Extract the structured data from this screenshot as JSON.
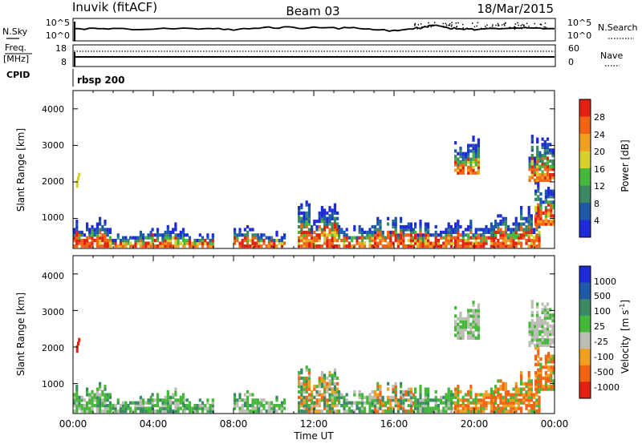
{
  "header": {
    "station": "Inuvik (fitACF)",
    "beam": "Beam 03",
    "date": "18/Mar/2015"
  },
  "nsky_panel": {
    "left_label": "N.Sky",
    "left_ticks": [
      "10^5",
      "10^0"
    ],
    "right_ticks": [
      "10^5",
      "10^0"
    ],
    "right_label": "N.Search",
    "right_line_style": "dotted"
  },
  "freq_panel": {
    "left_label_top": "Freq.",
    "left_label_bottom": "[MHz]",
    "left_ticks": [
      "18",
      "8"
    ],
    "right_ticks": [
      "60",
      "0"
    ],
    "right_label": "Nave",
    "right_line_style": "dotted"
  },
  "cpid_panel": {
    "label": "CPID",
    "program": "rbsp 200"
  },
  "power_panel": {
    "ylabel": "Slant Range [km]",
    "yticks": [
      "1000",
      "2000",
      "3000",
      "4000"
    ],
    "colorbar_label": "Power [dB]",
    "colorbar_ticks": [
      "4",
      "8",
      "12",
      "16",
      "20",
      "24",
      "28"
    ]
  },
  "velocity_panel": {
    "ylabel": "Slant Range [km]",
    "yticks": [
      "1000",
      "2000",
      "3000",
      "4000"
    ],
    "colorbar_label": "Velocity",
    "colorbar_unit_a": "[m s",
    "colorbar_unit_sup": "-1",
    "colorbar_unit_b": "]",
    "colorbar_ticks": [
      "1000",
      "500",
      "100",
      "25",
      "-25",
      "-100",
      "-500",
      "-1000"
    ]
  },
  "xaxis": {
    "ticks": [
      "00:00",
      "04:00",
      "08:00",
      "12:00",
      "16:00",
      "20:00",
      "00:00"
    ],
    "label": "Time UT"
  },
  "chart_data": {
    "type": "heatmap",
    "time_range_hours": [
      0,
      24
    ],
    "range_km": [
      180,
      4500
    ],
    "power_colors": [
      "#1e2bd6",
      "#1d5aa8",
      "#3a8a64",
      "#45b83b",
      "#d6cf30",
      "#f0a020",
      "#f06414",
      "#e02010"
    ],
    "velocity_colors": [
      "#1e2bd6",
      "#1d5aa8",
      "#3a8a64",
      "#45b83b",
      "#bdbdb5",
      "#f0a020",
      "#f06414",
      "#e02010"
    ],
    "nsky_trend": [
      [
        0.1,
        0.45
      ],
      [
        2,
        0.47
      ],
      [
        6,
        0.45
      ],
      [
        8,
        0.5
      ],
      [
        10,
        0.4
      ],
      [
        12,
        0.42
      ],
      [
        14,
        0.44
      ],
      [
        16,
        0.55
      ],
      [
        17.5,
        0.4
      ],
      [
        18,
        0.3
      ],
      [
        19,
        0.45
      ],
      [
        20,
        0.48
      ],
      [
        22,
        0.45
      ],
      [
        24,
        0.42
      ]
    ],
    "echo_regions": [
      {
        "t0": 0.0,
        "t1": 1.8,
        "r0": 200,
        "r1": 1050,
        "core": 0.75,
        "vel": "green"
      },
      {
        "t0": 1.8,
        "t1": 2.8,
        "r0": 200,
        "r1": 550,
        "core": 0.3,
        "vel": "green"
      },
      {
        "t0": 2.8,
        "t1": 3.9,
        "r0": 200,
        "r1": 700,
        "core": 0.3,
        "vel": "green"
      },
      {
        "t0": 3.9,
        "t1": 5.5,
        "r0": 200,
        "r1": 850,
        "core": 0.3,
        "vel": "green"
      },
      {
        "t0": 5.5,
        "t1": 7.0,
        "r0": 200,
        "r1": 550,
        "core": 0.3,
        "vel": "green"
      },
      {
        "t0": 8.0,
        "t1": 9.2,
        "r0": 200,
        "r1": 800,
        "core": 0.8,
        "vel": "green"
      },
      {
        "t0": 9.2,
        "t1": 10.6,
        "r0": 200,
        "r1": 600,
        "core": 0.6,
        "vel": "green"
      },
      {
        "t0": 11.2,
        "t1": 13.2,
        "r0": 200,
        "r1": 1500,
        "core": 0.6,
        "vel": "mixed"
      },
      {
        "t0": 13.2,
        "t1": 15.0,
        "r0": 200,
        "r1": 800,
        "core": 0.45,
        "vel": "green"
      },
      {
        "t0": 15.0,
        "t1": 17.0,
        "r0": 200,
        "r1": 1000,
        "core": 0.75,
        "vel": "mixed"
      },
      {
        "t0": 17.0,
        "t1": 19.0,
        "r0": 200,
        "r1": 900,
        "core": 0.65,
        "vel": "green"
      },
      {
        "t0": 19.0,
        "t1": 21.0,
        "r0": 200,
        "r1": 900,
        "core": 0.75,
        "vel": "orange"
      },
      {
        "t0": 21.0,
        "t1": 23.3,
        "r0": 200,
        "r1": 1300,
        "core": 0.6,
        "vel": "orange"
      },
      {
        "t0": 23.0,
        "t1": 23.95,
        "r0": 800,
        "r1": 2000,
        "core": 0.7,
        "vel": "orange"
      },
      {
        "t0": 19.0,
        "t1": 20.2,
        "r0": 2200,
        "r1": 3200,
        "core": 0.3,
        "vel": "gray"
      },
      {
        "t0": 22.7,
        "t1": 23.9,
        "r0": 2000,
        "r1": 3300,
        "core": 0.4,
        "vel": "gray"
      }
    ]
  }
}
